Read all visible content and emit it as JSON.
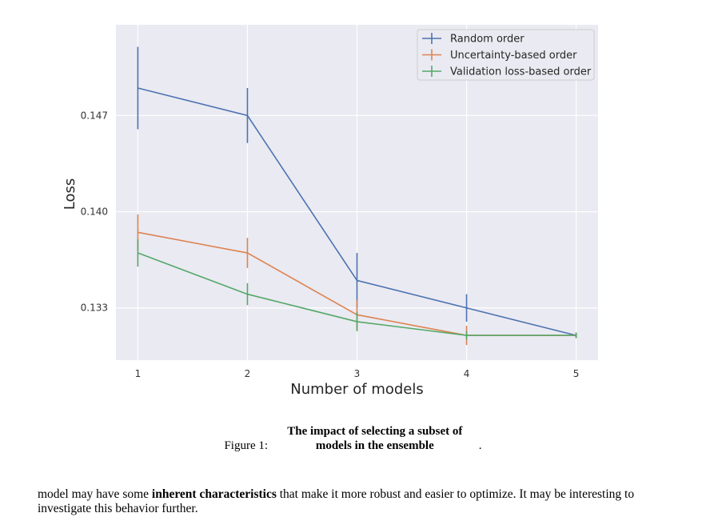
{
  "chart_data": {
    "type": "line",
    "xlabel": "Number of models",
    "ylabel": "Loss",
    "x": [
      1,
      2,
      3,
      4,
      5
    ],
    "xticks": [
      "1",
      "2",
      "3",
      "4",
      "5"
    ],
    "yticks": [
      0.133,
      0.14,
      0.147
    ],
    "ytick_labels": [
      "0.133",
      "0.140",
      "0.147"
    ],
    "xlim": [
      0.8,
      5.2
    ],
    "ylim": [
      0.1292,
      0.1536
    ],
    "grid": true,
    "legend_position": "top-right",
    "series": [
      {
        "name": "Random order",
        "color": "#4c72b0",
        "values": [
          0.149,
          0.147,
          0.135,
          0.133,
          0.131
        ],
        "errors": [
          0.003,
          0.002,
          0.002,
          0.001,
          0.0002
        ]
      },
      {
        "name": "Uncertainty-based order",
        "color": "#dd8452",
        "values": [
          0.1385,
          0.137,
          0.1325,
          0.131,
          0.131
        ],
        "errors": [
          0.0013,
          0.0011,
          0.0011,
          0.0007,
          0.0002
        ]
      },
      {
        "name": "Validation loss-based order",
        "color": "#55a868",
        "values": [
          0.137,
          0.134,
          0.132,
          0.131,
          0.131
        ],
        "errors": [
          0.001,
          0.0008,
          0.0007,
          0.0003,
          0.0002
        ]
      }
    ]
  },
  "caption": {
    "prefix": "Figure 1: ",
    "bold": "The impact of selecting a subset of models in the ensemble",
    "suffix": "."
  },
  "body": {
    "part1": "model may have some ",
    "bold": "inherent characteristics",
    "part2": " that make it more robust and easier to optimize. It may be interesting to investigate this behavior further."
  }
}
